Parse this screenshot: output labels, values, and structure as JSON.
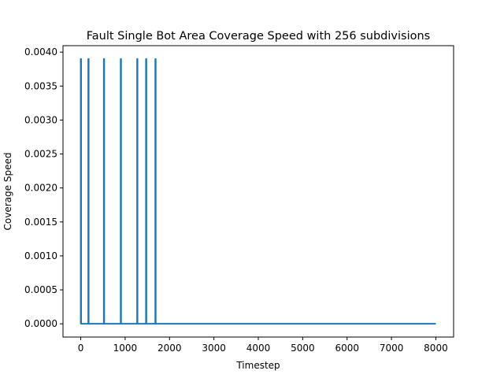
{
  "chart_data": {
    "type": "line",
    "title": "Fault Single Bot Area Coverage Speed with 256 subdivisions",
    "xlabel": "Timestep",
    "ylabel": "Coverage Speed",
    "xlim": [
      -400,
      8400
    ],
    "ylim": [
      -0.000195,
      0.004095
    ],
    "xticks": [
      0,
      1000,
      2000,
      3000,
      4000,
      5000,
      6000,
      7000,
      8000
    ],
    "yticks": [
      0.0,
      0.0005,
      0.001,
      0.0015,
      0.002,
      0.0025,
      0.003,
      0.0035,
      0.004
    ],
    "xtick_labels": [
      "0",
      "1000",
      "2000",
      "3000",
      "4000",
      "5000",
      "6000",
      "7000",
      "8000"
    ],
    "ytick_labels": [
      "0.0000",
      "0.0005",
      "0.0010",
      "0.0015",
      "0.0020",
      "0.0025",
      "0.0030",
      "0.0035",
      "0.0040"
    ],
    "grid": false,
    "series": [
      {
        "color": "#1f77b4",
        "x": [
          0,
          0,
          8,
          8,
          170,
          170,
          178,
          178,
          520,
          520,
          528,
          528,
          900,
          900,
          908,
          908,
          1270,
          1270,
          1278,
          1278,
          1470,
          1470,
          1478,
          1478,
          1680,
          1680,
          1688,
          1688,
          8000
        ],
        "y": [
          0,
          0.0039,
          0.0039,
          0,
          0,
          0.0039,
          0.0039,
          0,
          0,
          0.0039,
          0.0039,
          0,
          0,
          0.0039,
          0.0039,
          0,
          0,
          0.0039,
          0.0039,
          0,
          0,
          0.0039,
          0.0039,
          0,
          0,
          0.0039,
          0.0039,
          0,
          0
        ]
      }
    ]
  }
}
